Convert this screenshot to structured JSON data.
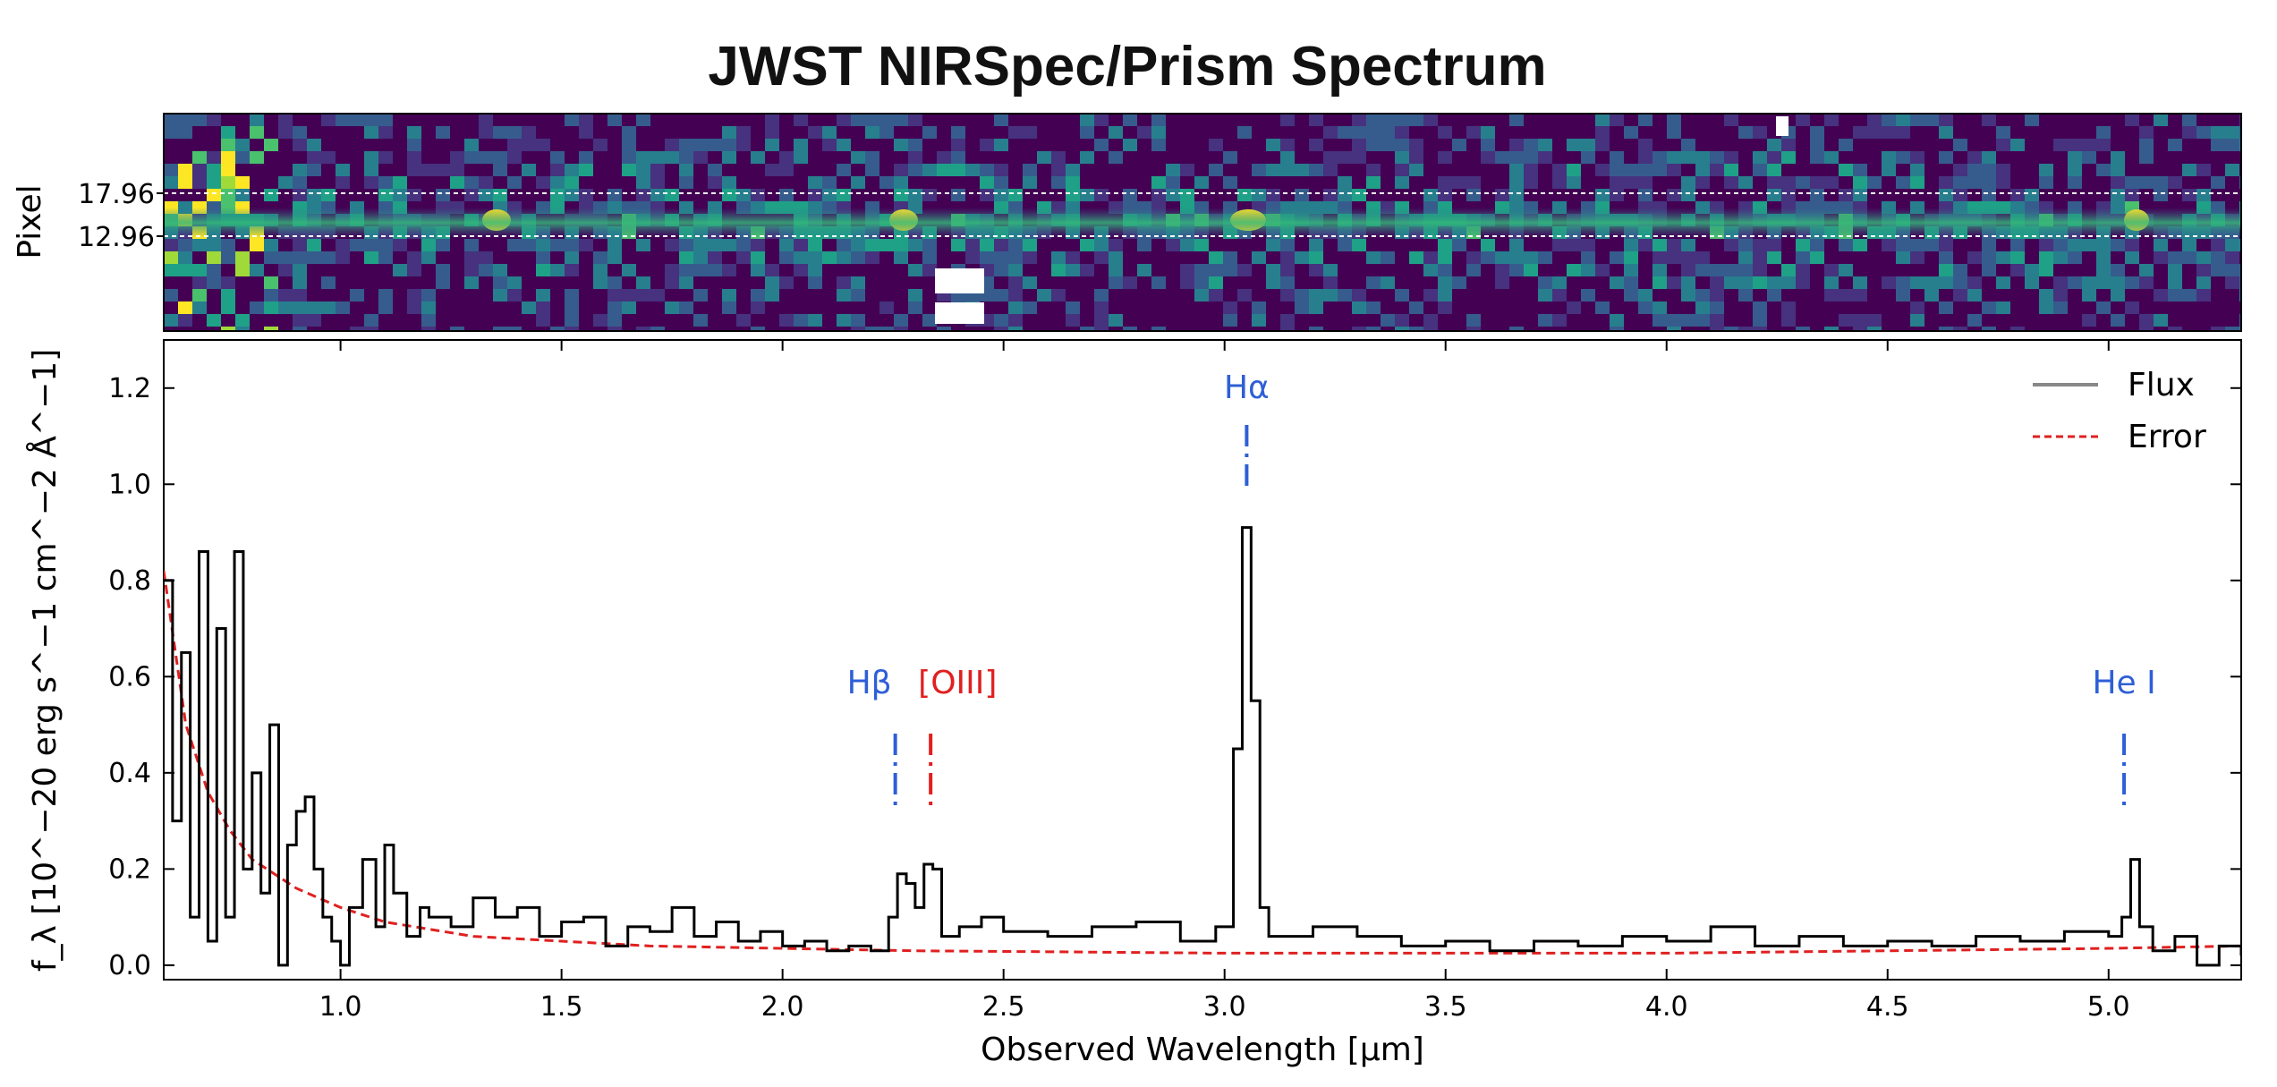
{
  "chart_data": {
    "type": "line",
    "title": "JWST NIRSpec/Prism Spectrum",
    "xlabel": "Observed Wavelength [μm]",
    "ylabel": "f_λ [10^−20 erg s^−1 cm^−2 Å^−1]",
    "xlim": [
      0.6,
      5.3
    ],
    "ylim": [
      -0.03,
      1.3
    ],
    "x_ticks": [
      "1.0",
      "1.5",
      "2.0",
      "2.5",
      "3.0",
      "3.5",
      "4.0",
      "4.5",
      "5.0"
    ],
    "x_tick_values": [
      1.0,
      1.5,
      2.0,
      2.5,
      3.0,
      3.5,
      4.0,
      4.5,
      5.0
    ],
    "y_ticks": [
      "0.0",
      "0.2",
      "0.4",
      "0.6",
      "0.8",
      "1.0",
      "1.2"
    ],
    "y_tick_values": [
      0.0,
      0.2,
      0.4,
      0.6,
      0.8,
      1.0,
      1.2
    ],
    "grid": false,
    "legend_position": "top-right",
    "series": [
      {
        "name": "Flux",
        "color": "#000000",
        "style": "steps",
        "x": [
          0.6,
          0.62,
          0.64,
          0.66,
          0.68,
          0.7,
          0.72,
          0.74,
          0.76,
          0.78,
          0.8,
          0.82,
          0.84,
          0.86,
          0.88,
          0.9,
          0.92,
          0.94,
          0.96,
          0.98,
          1.0,
          1.02,
          1.05,
          1.08,
          1.1,
          1.12,
          1.15,
          1.18,
          1.2,
          1.25,
          1.3,
          1.35,
          1.4,
          1.45,
          1.5,
          1.55,
          1.6,
          1.65,
          1.7,
          1.75,
          1.8,
          1.85,
          1.9,
          1.95,
          2.0,
          2.05,
          2.1,
          2.15,
          2.2,
          2.24,
          2.26,
          2.28,
          2.3,
          2.32,
          2.34,
          2.36,
          2.4,
          2.45,
          2.5,
          2.6,
          2.7,
          2.8,
          2.9,
          2.98,
          3.02,
          3.04,
          3.06,
          3.08,
          3.1,
          3.2,
          3.3,
          3.4,
          3.5,
          3.6,
          3.7,
          3.8,
          3.9,
          4.0,
          4.1,
          4.2,
          4.3,
          4.4,
          4.5,
          4.6,
          4.7,
          4.8,
          4.9,
          5.0,
          5.03,
          5.05,
          5.07,
          5.1,
          5.15,
          5.2,
          5.25,
          5.3
        ],
        "values": [
          0.8,
          0.3,
          0.65,
          0.1,
          0.86,
          0.05,
          0.7,
          0.1,
          0.86,
          0.2,
          0.4,
          0.15,
          0.5,
          0.0,
          0.25,
          0.32,
          0.35,
          0.2,
          0.1,
          0.05,
          0.0,
          0.12,
          0.22,
          0.08,
          0.25,
          0.15,
          0.06,
          0.12,
          0.1,
          0.08,
          0.14,
          0.1,
          0.12,
          0.06,
          0.09,
          0.1,
          0.04,
          0.08,
          0.07,
          0.12,
          0.06,
          0.09,
          0.05,
          0.07,
          0.04,
          0.05,
          0.03,
          0.04,
          0.03,
          0.1,
          0.19,
          0.17,
          0.12,
          0.21,
          0.2,
          0.06,
          0.08,
          0.1,
          0.07,
          0.06,
          0.08,
          0.09,
          0.05,
          0.08,
          0.45,
          0.91,
          0.55,
          0.12,
          0.06,
          0.08,
          0.06,
          0.04,
          0.05,
          0.03,
          0.05,
          0.04,
          0.06,
          0.05,
          0.08,
          0.04,
          0.06,
          0.04,
          0.05,
          0.04,
          0.06,
          0.05,
          0.07,
          0.06,
          0.1,
          0.22,
          0.08,
          0.03,
          0.06,
          0.0,
          0.04,
          0.02
        ]
      },
      {
        "name": "Error",
        "color": "#e02020",
        "style": "dashed",
        "x": [
          0.6,
          0.65,
          0.7,
          0.75,
          0.8,
          0.9,
          1.0,
          1.1,
          1.2,
          1.3,
          1.5,
          1.7,
          2.0,
          2.3,
          2.6,
          3.0,
          3.5,
          4.0,
          4.5,
          5.0,
          5.3
        ],
        "values": [
          0.82,
          0.5,
          0.36,
          0.28,
          0.22,
          0.16,
          0.12,
          0.09,
          0.075,
          0.06,
          0.05,
          0.04,
          0.035,
          0.03,
          0.028,
          0.025,
          0.025,
          0.025,
          0.03,
          0.035,
          0.04
        ]
      }
    ],
    "line_markers": [
      {
        "label": "Hβ",
        "x": 2.255,
        "color": "#2e5fd6"
      },
      {
        "label": "[OIII]",
        "x": 2.335,
        "color": "#e02020"
      },
      {
        "label": "Hα",
        "x": 3.05,
        "color": "#2e5fd6"
      },
      {
        "label": "He I",
        "x": 5.035,
        "color": "#2e5fd6"
      }
    ],
    "image_panel": {
      "ylabel": "Pixel",
      "y_ticks": [
        "17.96",
        "12.96"
      ],
      "colormap": "viridis"
    }
  }
}
